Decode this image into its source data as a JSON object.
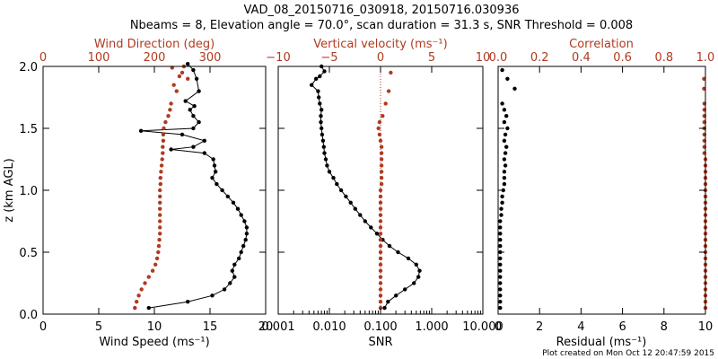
{
  "title_line1": "VAD_08_20150716_030918, 20150716.030936",
  "title_line2": "Nbeams = 8, Elevation angle = 70.0°, scan duration = 31.3 s, SNR Threshold = 0.008",
  "footer": "Plot created on Mon Oct 12 20:47:59 2015",
  "colors": {
    "black": "#000000",
    "red": "#b03a20"
  },
  "chart_data": [
    {
      "type": "line",
      "panel": "left",
      "ylabel": "z (km AGL)",
      "ylim": [
        0,
        2.0
      ],
      "yticks": [
        "0.0",
        "0.5",
        "1.0",
        "1.5",
        "2.0"
      ],
      "yticks_values": [
        0,
        0.5,
        1.0,
        1.5,
        2.0
      ],
      "bottom_axis": {
        "label": "Wind Speed (ms⁻¹)",
        "lim": [
          0,
          20
        ],
        "ticks": [
          "0",
          "5",
          "10",
          "15",
          "20"
        ],
        "tick_values": [
          0,
          5,
          10,
          15,
          20
        ]
      },
      "top_axis": {
        "label": "Wind Direction (deg)",
        "lim": [
          0,
          400
        ],
        "ticks": [
          "0",
          "100",
          "200",
          "300"
        ],
        "tick_values": [
          0,
          100,
          200,
          300
        ]
      },
      "series": [
        {
          "axis": "bottom",
          "color": "#000000",
          "connected": true,
          "points": [
            [
              9.5,
              0.05
            ],
            [
              13.0,
              0.1
            ],
            [
              15.2,
              0.15
            ],
            [
              16.3,
              0.2
            ],
            [
              16.8,
              0.25
            ],
            [
              17.2,
              0.3
            ],
            [
              17.0,
              0.35
            ],
            [
              17.2,
              0.4
            ],
            [
              17.6,
              0.45
            ],
            [
              17.8,
              0.5
            ],
            [
              18.0,
              0.55
            ],
            [
              18.2,
              0.6
            ],
            [
              18.3,
              0.65
            ],
            [
              18.3,
              0.7
            ],
            [
              18.1,
              0.75
            ],
            [
              17.8,
              0.8
            ],
            [
              17.5,
              0.85
            ],
            [
              17.1,
              0.9
            ],
            [
              16.6,
              0.95
            ],
            [
              16.1,
              1.0
            ],
            [
              15.6,
              1.05
            ],
            [
              15.2,
              1.1
            ],
            [
              15.5,
              1.15
            ],
            [
              15.4,
              1.2
            ],
            [
              15.3,
              1.25
            ],
            [
              14.5,
              1.3
            ],
            [
              11.5,
              1.33
            ],
            [
              13.5,
              1.35
            ],
            [
              14.5,
              1.4
            ],
            [
              12.5,
              1.45
            ],
            [
              8.8,
              1.48
            ],
            [
              13.5,
              1.5
            ],
            [
              14.0,
              1.55
            ],
            [
              13.5,
              1.6
            ],
            [
              13.2,
              1.65
            ],
            [
              13.6,
              1.68
            ],
            [
              12.8,
              1.72
            ],
            [
              14.0,
              1.8
            ],
            [
              13.8,
              1.9
            ],
            [
              13.5,
              1.97
            ],
            [
              13.0,
              2.02
            ]
          ]
        },
        {
          "axis": "top",
          "color": "#b03a20",
          "connected": false,
          "points": [
            [
              165,
              0.05
            ],
            [
              168,
              0.1
            ],
            [
              172,
              0.15
            ],
            [
              177,
              0.2
            ],
            [
              183,
              0.25
            ],
            [
              190,
              0.3
            ],
            [
              197,
              0.35
            ],
            [
              202,
              0.4
            ],
            [
              205,
              0.45
            ],
            [
              207,
              0.5
            ],
            [
              208,
              0.55
            ],
            [
              209,
              0.6
            ],
            [
              210,
              0.65
            ],
            [
              210,
              0.7
            ],
            [
              210,
              0.75
            ],
            [
              210,
              0.8
            ],
            [
              210,
              0.85
            ],
            [
              210,
              0.9
            ],
            [
              210,
              0.95
            ],
            [
              210,
              1.0
            ],
            [
              211,
              1.05
            ],
            [
              211,
              1.1
            ],
            [
              212,
              1.15
            ],
            [
              213,
              1.2
            ],
            [
              214,
              1.25
            ],
            [
              215,
              1.3
            ],
            [
              215,
              1.35
            ],
            [
              216,
              1.4
            ],
            [
              216,
              1.45
            ],
            [
              217,
              1.5
            ],
            [
              220,
              1.55
            ],
            [
              225,
              1.6
            ],
            [
              228,
              1.65
            ],
            [
              230,
              1.7
            ],
            [
              240,
              1.8
            ],
            [
              235,
              1.85
            ],
            [
              260,
              1.9
            ],
            [
              245,
              1.92
            ],
            [
              250,
              1.95
            ],
            [
              232,
              1.99
            ],
            [
              253,
              2.0
            ]
          ]
        }
      ]
    },
    {
      "type": "line",
      "panel": "middle",
      "ylim": [
        0,
        2.0
      ],
      "bottom_axis": {
        "label": "SNR",
        "lim": [
          0.001,
          10
        ],
        "scale": "log",
        "ticks": [
          "0.001",
          "0.010",
          "0.100",
          "1.000",
          "10.000"
        ],
        "tick_values": [
          0.001,
          0.01,
          0.1,
          1,
          10
        ]
      },
      "top_axis": {
        "label": "Vertical velocity (ms⁻¹)",
        "lim": [
          -10,
          10
        ],
        "ticks": [
          "−10",
          "−5",
          "0",
          "5",
          "10"
        ],
        "tick_values": [
          -10,
          -5,
          0,
          5,
          10
        ]
      },
      "series": [
        {
          "axis": "bottom",
          "color": "#000000",
          "connected": true,
          "points": [
            [
              0.12,
              0.05
            ],
            [
              0.14,
              0.1
            ],
            [
              0.2,
              0.15
            ],
            [
              0.3,
              0.2
            ],
            [
              0.45,
              0.25
            ],
            [
              0.55,
              0.3
            ],
            [
              0.58,
              0.35
            ],
            [
              0.5,
              0.4
            ],
            [
              0.35,
              0.45
            ],
            [
              0.22,
              0.5
            ],
            [
              0.15,
              0.55
            ],
            [
              0.11,
              0.6
            ],
            [
              0.085,
              0.65
            ],
            [
              0.065,
              0.7
            ],
            [
              0.05,
              0.75
            ],
            [
              0.04,
              0.8
            ],
            [
              0.032,
              0.85
            ],
            [
              0.026,
              0.9
            ],
            [
              0.021,
              0.95
            ],
            [
              0.017,
              1.0
            ],
            [
              0.014,
              1.05
            ],
            [
              0.012,
              1.1
            ],
            [
              0.01,
              1.15
            ],
            [
              0.009,
              1.2
            ],
            [
              0.0085,
              1.25
            ],
            [
              0.008,
              1.3
            ],
            [
              0.0078,
              1.35
            ],
            [
              0.0075,
              1.4
            ],
            [
              0.0072,
              1.45
            ],
            [
              0.007,
              1.5
            ],
            [
              0.0068,
              1.55
            ],
            [
              0.0068,
              1.6
            ],
            [
              0.007,
              1.65
            ],
            [
              0.0065,
              1.7
            ],
            [
              0.0062,
              1.75
            ],
            [
              0.006,
              1.8
            ],
            [
              0.0045,
              1.85
            ],
            [
              0.0055,
              1.9
            ],
            [
              0.0065,
              1.92
            ],
            [
              0.008,
              1.96
            ],
            [
              0.007,
              2.0
            ]
          ]
        },
        {
          "axis": "top",
          "color": "#b03a20",
          "connected": false,
          "points": [
            [
              0.0,
              0.05
            ],
            [
              0.0,
              0.1
            ],
            [
              0.0,
              0.15
            ],
            [
              0.0,
              0.2
            ],
            [
              0.0,
              0.25
            ],
            [
              0.0,
              0.3
            ],
            [
              0.0,
              0.35
            ],
            [
              0.0,
              0.4
            ],
            [
              0.0,
              0.45
            ],
            [
              0.0,
              0.5
            ],
            [
              0.0,
              0.55
            ],
            [
              0.0,
              0.6
            ],
            [
              0.0,
              0.65
            ],
            [
              0.0,
              0.7
            ],
            [
              0.0,
              0.75
            ],
            [
              0.0,
              0.8
            ],
            [
              0.0,
              0.85
            ],
            [
              0.0,
              0.9
            ],
            [
              0.0,
              0.95
            ],
            [
              0.0,
              1.0
            ],
            [
              0.1,
              1.05
            ],
            [
              0.1,
              1.1
            ],
            [
              0.1,
              1.15
            ],
            [
              0.1,
              1.2
            ],
            [
              0.1,
              1.25
            ],
            [
              0.1,
              1.3
            ],
            [
              0.1,
              1.35
            ],
            [
              0.0,
              1.4
            ],
            [
              -0.1,
              1.45
            ],
            [
              -0.2,
              1.5
            ],
            [
              -0.1,
              1.55
            ],
            [
              0.2,
              1.6
            ],
            [
              0.5,
              1.7
            ],
            [
              0.8,
              1.8
            ],
            [
              1.0,
              1.95
            ]
          ]
        },
        {
          "axis": "top",
          "color": "#b03a20",
          "style": "dotted",
          "connected": true,
          "points": [
            [
              0,
              0.0
            ],
            [
              0,
              2.0
            ]
          ]
        }
      ]
    },
    {
      "type": "line",
      "panel": "right",
      "ylim": [
        0,
        2.0
      ],
      "bottom_axis": {
        "label": "Residual (ms⁻¹)",
        "lim": [
          0,
          10
        ],
        "ticks": [
          "0",
          "2",
          "4",
          "6",
          "8",
          "10"
        ],
        "tick_values": [
          0,
          2,
          4,
          6,
          8,
          10
        ]
      },
      "top_axis": {
        "label": "Correlation",
        "lim": [
          0,
          1.0
        ],
        "ticks": [
          "0.0",
          "0.2",
          "0.4",
          "0.6",
          "0.8",
          "1.0"
        ],
        "tick_values": [
          0,
          0.2,
          0.4,
          0.6,
          0.8,
          1.0
        ]
      },
      "series": [
        {
          "axis": "bottom",
          "color": "#000000",
          "connected": false,
          "points": [
            [
              0.1,
              0.05
            ],
            [
              0.1,
              0.1
            ],
            [
              0.1,
              0.15
            ],
            [
              0.1,
              0.2
            ],
            [
              0.1,
              0.25
            ],
            [
              0.1,
              0.3
            ],
            [
              0.1,
              0.35
            ],
            [
              0.1,
              0.4
            ],
            [
              0.1,
              0.45
            ],
            [
              0.1,
              0.5
            ],
            [
              0.1,
              0.55
            ],
            [
              0.1,
              0.6
            ],
            [
              0.1,
              0.65
            ],
            [
              0.1,
              0.7
            ],
            [
              0.1,
              0.75
            ],
            [
              0.15,
              0.8
            ],
            [
              0.15,
              0.85
            ],
            [
              0.2,
              0.9
            ],
            [
              0.2,
              0.95
            ],
            [
              0.25,
              1.0
            ],
            [
              0.3,
              1.05
            ],
            [
              0.3,
              1.1
            ],
            [
              0.3,
              1.15
            ],
            [
              0.35,
              1.2
            ],
            [
              0.3,
              1.25
            ],
            [
              0.35,
              1.3
            ],
            [
              0.4,
              1.35
            ],
            [
              0.3,
              1.4
            ],
            [
              0.35,
              1.45
            ],
            [
              0.45,
              1.5
            ],
            [
              0.3,
              1.55
            ],
            [
              0.4,
              1.6
            ],
            [
              0.3,
              1.65
            ],
            [
              0.2,
              1.7
            ],
            [
              0.8,
              1.82
            ],
            [
              0.45,
              1.9
            ],
            [
              0.2,
              1.97
            ]
          ]
        },
        {
          "axis": "top",
          "color": "#b03a20",
          "connected": false,
          "points": [
            [
              1.0,
              0.05
            ],
            [
              1.0,
              0.1
            ],
            [
              1.0,
              0.15
            ],
            [
              1.0,
              0.2
            ],
            [
              1.0,
              0.25
            ],
            [
              1.0,
              0.3
            ],
            [
              1.0,
              0.35
            ],
            [
              1.0,
              0.4
            ],
            [
              1.0,
              0.45
            ],
            [
              1.0,
              0.5
            ],
            [
              1.0,
              0.55
            ],
            [
              1.0,
              0.6
            ],
            [
              1.0,
              0.65
            ],
            [
              1.0,
              0.7
            ],
            [
              1.0,
              0.75
            ],
            [
              1.0,
              0.8
            ],
            [
              1.0,
              0.85
            ],
            [
              1.0,
              0.9
            ],
            [
              1.0,
              0.95
            ],
            [
              1.0,
              1.0
            ],
            [
              1.0,
              1.05
            ],
            [
              1.0,
              1.1
            ],
            [
              1.0,
              1.15
            ],
            [
              1.0,
              1.2
            ],
            [
              1.0,
              1.25
            ],
            [
              0.995,
              1.3
            ],
            [
              0.995,
              1.35
            ],
            [
              0.995,
              1.4
            ],
            [
              0.995,
              1.45
            ],
            [
              0.995,
              1.5
            ],
            [
              0.995,
              1.55
            ],
            [
              0.995,
              1.6
            ],
            [
              0.995,
              1.65
            ],
            [
              0.995,
              1.7
            ],
            [
              0.993,
              1.82
            ],
            [
              0.993,
              1.9
            ]
          ]
        }
      ]
    }
  ]
}
